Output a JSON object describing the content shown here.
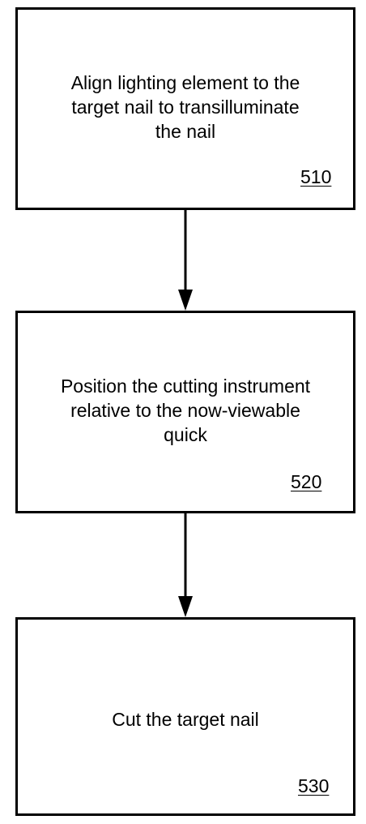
{
  "diagram": {
    "steps": [
      {
        "text": "Align lighting element to the\ntarget nail to transilluminate\nthe nail",
        "ref": "510"
      },
      {
        "text": "Position the cutting instrument\nrelative to the now-viewable\nquick",
        "ref": "520"
      },
      {
        "text": "Cut the target nail",
        "ref": "530"
      }
    ],
    "colors": {
      "stroke": "#000000",
      "background": "#ffffff"
    }
  }
}
